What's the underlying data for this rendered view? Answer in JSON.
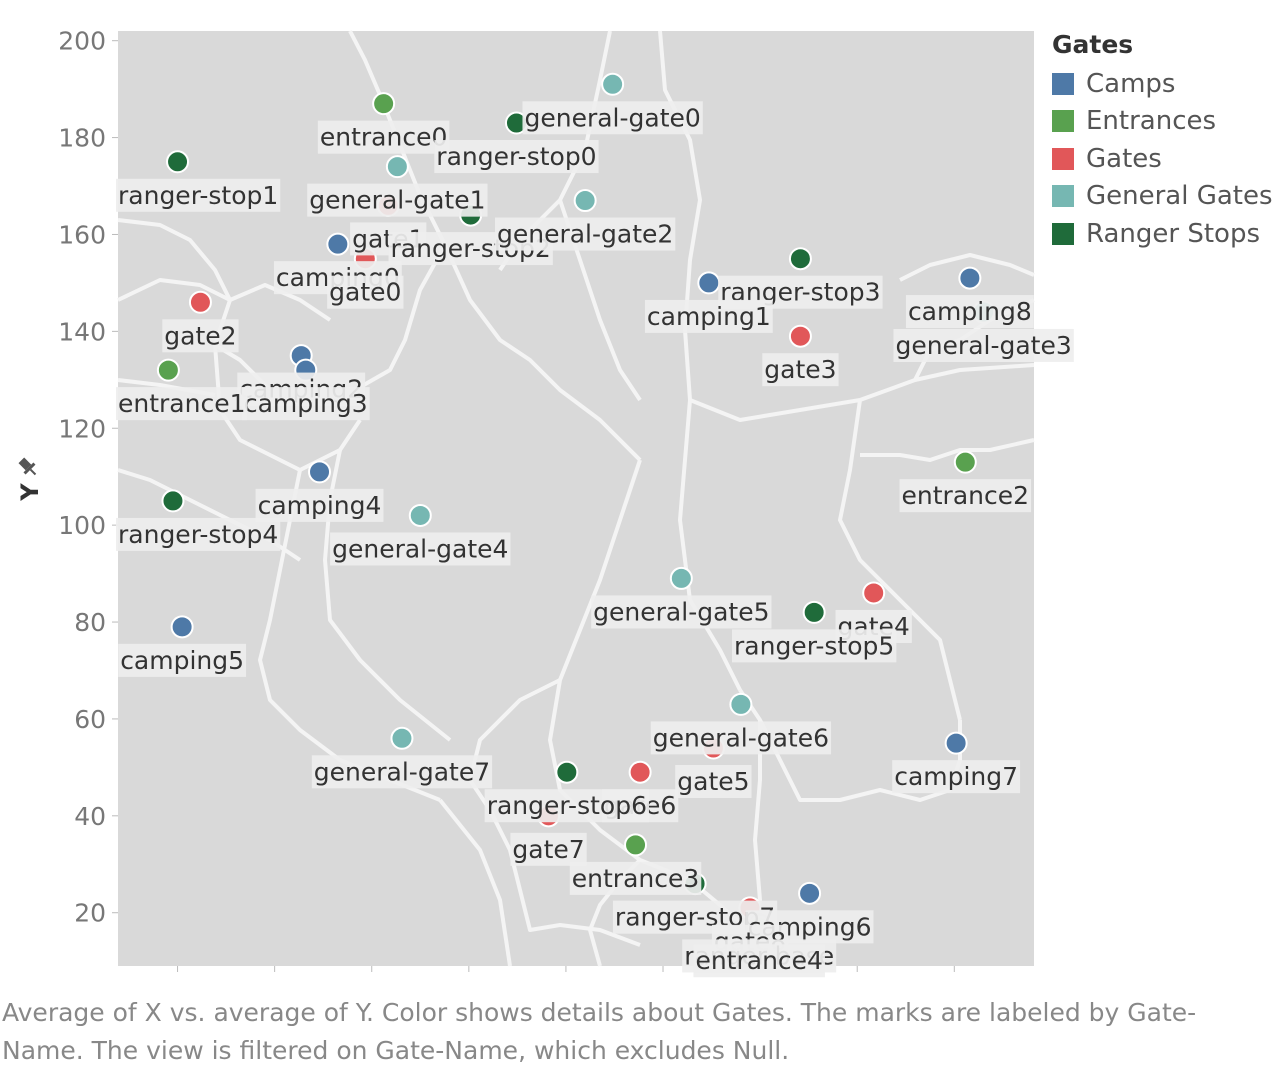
{
  "chart_data": {
    "type": "scatter",
    "title": "",
    "xlabel": "",
    "ylabel": "Y",
    "xlim": [
      0,
      100
    ],
    "ylim": [
      9,
      202
    ],
    "yticks": [
      20,
      40,
      60,
      80,
      100,
      120,
      140,
      160,
      180,
      200
    ],
    "grid": false,
    "legend_position": "right",
    "legend_title": "Gates",
    "categories": [
      {
        "name": "Camps",
        "color": "#4e79a7"
      },
      {
        "name": "Entrances",
        "color": "#59a14f"
      },
      {
        "name": "Gates",
        "color": "#e15759"
      },
      {
        "name": "General Gates",
        "color": "#76b7b2"
      },
      {
        "name": "Ranger Stops",
        "color": "#1f6b3a"
      }
    ],
    "points": [
      {
        "name": "entrance0",
        "category": "Entrances",
        "x": 29,
        "y": 187
      },
      {
        "name": "general-gate0",
        "category": "General Gates",
        "x": 54,
        "y": 191
      },
      {
        "name": "ranger-stop0",
        "category": "Ranger Stops",
        "x": 43.5,
        "y": 183
      },
      {
        "name": "ranger-stop1",
        "category": "Ranger Stops",
        "x": 6.5,
        "y": 175
      },
      {
        "name": "general-gate1",
        "category": "General Gates",
        "x": 30.5,
        "y": 174
      },
      {
        "name": "gate1",
        "category": "Gates",
        "x": 29.5,
        "y": 166
      },
      {
        "name": "ranger-stop2",
        "category": "Ranger Stops",
        "x": 38.5,
        "y": 164
      },
      {
        "name": "general-gate2",
        "category": "General Gates",
        "x": 51,
        "y": 167
      },
      {
        "name": "camping0",
        "category": "Camps",
        "x": 24,
        "y": 158
      },
      {
        "name": "gate0",
        "category": "Gates",
        "x": 27,
        "y": 155
      },
      {
        "name": "ranger-stop3",
        "category": "Ranger Stops",
        "x": 74.5,
        "y": 155
      },
      {
        "name": "camping1",
        "category": "Camps",
        "x": 64.5,
        "y": 150
      },
      {
        "name": "camping8",
        "category": "Camps",
        "x": 93,
        "y": 151
      },
      {
        "name": "general-gate3",
        "category": "General Gates",
        "x": 94.5,
        "y": 144
      },
      {
        "name": "gate2",
        "category": "Gates",
        "x": 9,
        "y": 146
      },
      {
        "name": "gate3",
        "category": "Gates",
        "x": 74.5,
        "y": 139
      },
      {
        "name": "camping2",
        "category": "Camps",
        "x": 20,
        "y": 135
      },
      {
        "name": "camping3",
        "category": "Camps",
        "x": 20.5,
        "y": 132
      },
      {
        "name": "entrance1",
        "category": "Entrances",
        "x": 5.5,
        "y": 132
      },
      {
        "name": "entrance2",
        "category": "Entrances",
        "x": 92.5,
        "y": 113
      },
      {
        "name": "camping4",
        "category": "Camps",
        "x": 22,
        "y": 111
      },
      {
        "name": "ranger-stop4",
        "category": "Ranger Stops",
        "x": 6,
        "y": 105
      },
      {
        "name": "general-gate4",
        "category": "General Gates",
        "x": 33,
        "y": 102
      },
      {
        "name": "general-gate5",
        "category": "General Gates",
        "x": 61.5,
        "y": 89
      },
      {
        "name": "gate4",
        "category": "Gates",
        "x": 82.5,
        "y": 86
      },
      {
        "name": "ranger-stop5",
        "category": "Ranger Stops",
        "x": 76,
        "y": 82
      },
      {
        "name": "camping5",
        "category": "Camps",
        "x": 7,
        "y": 79
      },
      {
        "name": "general-gate6",
        "category": "General Gates",
        "x": 68,
        "y": 63
      },
      {
        "name": "camping7",
        "category": "Camps",
        "x": 91.5,
        "y": 55
      },
      {
        "name": "general-gate7",
        "category": "General Gates",
        "x": 31,
        "y": 56
      },
      {
        "name": "gate5",
        "category": "Gates",
        "x": 65,
        "y": 54
      },
      {
        "name": "gate6",
        "category": "Gates",
        "x": 57,
        "y": 49
      },
      {
        "name": "ranger-stop6",
        "category": "Ranger Stops",
        "x": 49,
        "y": 49
      },
      {
        "name": "gate7",
        "category": "Gates",
        "x": 47,
        "y": 40
      },
      {
        "name": "entrance3",
        "category": "Entrances",
        "x": 56.5,
        "y": 34
      },
      {
        "name": "ranger-stop7",
        "category": "Ranger Stops",
        "x": 63,
        "y": 26
      },
      {
        "name": "camping6",
        "category": "Camps",
        "x": 75.5,
        "y": 24
      },
      {
        "name": "gate8",
        "category": "Gates",
        "x": 69,
        "y": 21
      },
      {
        "name": "ranger-base",
        "category": "Ranger Stops",
        "x": 70,
        "y": 18
      },
      {
        "name": "entrance4",
        "category": "Entrances",
        "x": 70,
        "y": 17
      }
    ]
  },
  "caption": "Average of X vs. average of Y.  Color shows details about Gates.  The marks are labeled by Gate-Name. The view is filtered on Gate-Name, which excludes Null."
}
